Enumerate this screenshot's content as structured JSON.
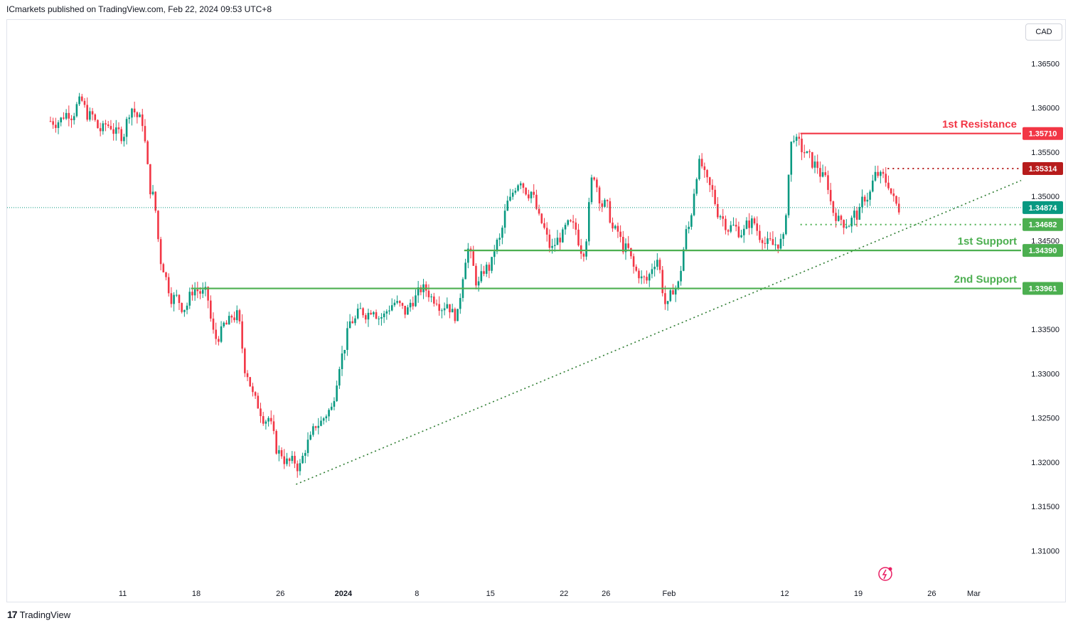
{
  "header": {
    "publisher_text": "ICmarkets published on TradingView.com, Feb 22, 2024 09:53 UTC+8"
  },
  "toolbar": {
    "currency": "CAD"
  },
  "footer": {
    "brand": "TradingView",
    "logo_icon": "tradingview-logo-icon"
  },
  "colors": {
    "up": "#089981",
    "down": "#f23645",
    "resistance": "#f23645",
    "support": "#4caf50",
    "pivot": "#b71c1c",
    "trend": "#2e7d32",
    "last": "#089981"
  },
  "chart_data": {
    "type": "candlestick",
    "symbol": "USDCAD",
    "title": "",
    "ylim": [
      1.3065,
      1.37
    ],
    "y_ticks": [
      {
        "value": 1.365,
        "label": "1.36500"
      },
      {
        "value": 1.36,
        "label": "1.36000"
      },
      {
        "value": 1.355,
        "label": "1.35500"
      },
      {
        "value": 1.35,
        "label": "1.35000"
      },
      {
        "value": 1.345,
        "label": "1.34500"
      },
      {
        "value": 1.335,
        "label": "1.33500"
      },
      {
        "value": 1.33,
        "label": "1.33000"
      },
      {
        "value": 1.325,
        "label": "1.32500"
      },
      {
        "value": 1.32,
        "label": "1.32000"
      },
      {
        "value": 1.315,
        "label": "1.31500"
      },
      {
        "value": 1.31,
        "label": "1.31000"
      }
    ],
    "x_ticks": [
      {
        "day": 11,
        "label": "11",
        "bold": false
      },
      {
        "day": 18,
        "label": "18",
        "bold": false
      },
      {
        "day": 26,
        "label": "26",
        "bold": false
      },
      {
        "day": 32,
        "label": "2024",
        "bold": true
      },
      {
        "day": 39,
        "label": "8",
        "bold": false
      },
      {
        "day": 46,
        "label": "15",
        "bold": false
      },
      {
        "day": 53,
        "label": "22",
        "bold": false
      },
      {
        "day": 57,
        "label": "26",
        "bold": false
      },
      {
        "day": 63,
        "label": "Feb",
        "bold": false
      },
      {
        "day": 74,
        "label": "12",
        "bold": false
      },
      {
        "day": 81,
        "label": "19",
        "bold": false
      },
      {
        "day": 88,
        "label": "26",
        "bold": false
      },
      {
        "day": 92,
        "label": "Mar",
        "bold": false
      }
    ],
    "candles_daily_close": [
      {
        "day": 5,
        "close": 1.3585
      },
      {
        "day": 6,
        "close": 1.3595
      },
      {
        "day": 7,
        "close": 1.3605
      },
      {
        "day": 8,
        "close": 1.359
      },
      {
        "day": 9,
        "close": 1.3575
      },
      {
        "day": 10,
        "close": 1.358
      },
      {
        "day": 11,
        "close": 1.357
      },
      {
        "day": 12,
        "close": 1.36
      },
      {
        "day": 13,
        "close": 1.3585
      },
      {
        "day": 14,
        "close": 1.35
      },
      {
        "day": 15,
        "close": 1.342
      },
      {
        "day": 16,
        "close": 1.3385
      },
      {
        "day": 17,
        "close": 1.3375
      },
      {
        "day": 18,
        "close": 1.3395
      },
      {
        "day": 19,
        "close": 1.339
      },
      {
        "day": 20,
        "close": 1.334
      },
      {
        "day": 21,
        "close": 1.3355
      },
      {
        "day": 22,
        "close": 1.3365
      },
      {
        "day": 23,
        "close": 1.33
      },
      {
        "day": 24,
        "close": 1.3265
      },
      {
        "day": 25,
        "close": 1.325
      },
      {
        "day": 26,
        "close": 1.321
      },
      {
        "day": 27,
        "close": 1.32
      },
      {
        "day": 28,
        "close": 1.3195
      },
      {
        "day": 29,
        "close": 1.3225
      },
      {
        "day": 30,
        "close": 1.3245
      },
      {
        "day": 31,
        "close": 1.326
      },
      {
        "day": 32,
        "close": 1.332
      },
      {
        "day": 33,
        "close": 1.336
      },
      {
        "day": 34,
        "close": 1.337
      },
      {
        "day": 35,
        "close": 1.3375
      },
      {
        "day": 36,
        "close": 1.3365
      },
      {
        "day": 37,
        "close": 1.338
      },
      {
        "day": 38,
        "close": 1.337
      },
      {
        "day": 39,
        "close": 1.3385
      },
      {
        "day": 40,
        "close": 1.3395
      },
      {
        "day": 41,
        "close": 1.3385
      },
      {
        "day": 42,
        "close": 1.338
      },
      {
        "day": 43,
        "close": 1.3365
      },
      {
        "day": 44,
        "close": 1.344
      },
      {
        "day": 45,
        "close": 1.34
      },
      {
        "day": 46,
        "close": 1.342
      },
      {
        "day": 47,
        "close": 1.345
      },
      {
        "day": 48,
        "close": 1.3495
      },
      {
        "day": 49,
        "close": 1.352
      },
      {
        "day": 50,
        "close": 1.3505
      },
      {
        "day": 51,
        "close": 1.347
      },
      {
        "day": 52,
        "close": 1.344
      },
      {
        "day": 53,
        "close": 1.3455
      },
      {
        "day": 54,
        "close": 1.3465
      },
      {
        "day": 55,
        "close": 1.344
      },
      {
        "day": 56,
        "close": 1.3525
      },
      {
        "day": 57,
        "close": 1.349
      },
      {
        "day": 58,
        "close": 1.346
      },
      {
        "day": 59,
        "close": 1.344
      },
      {
        "day": 60,
        "close": 1.3415
      },
      {
        "day": 61,
        "close": 1.3405
      },
      {
        "day": 62,
        "close": 1.343
      },
      {
        "day": 63,
        "close": 1.3375
      },
      {
        "day": 64,
        "close": 1.34
      },
      {
        "day": 65,
        "close": 1.3465
      },
      {
        "day": 66,
        "close": 1.3535
      },
      {
        "day": 67,
        "close": 1.351
      },
      {
        "day": 68,
        "close": 1.348
      },
      {
        "day": 69,
        "close": 1.3465
      },
      {
        "day": 70,
        "close": 1.346
      },
      {
        "day": 71,
        "close": 1.347
      },
      {
        "day": 72,
        "close": 1.3455
      },
      {
        "day": 73,
        "close": 1.3445
      },
      {
        "day": 74,
        "close": 1.345
      },
      {
        "day": 75,
        "close": 1.357
      },
      {
        "day": 76,
        "close": 1.355
      },
      {
        "day": 77,
        "close": 1.3535
      },
      {
        "day": 78,
        "close": 1.352
      },
      {
        "day": 79,
        "close": 1.348
      },
      {
        "day": 80,
        "close": 1.347
      },
      {
        "day": 81,
        "close": 1.348
      },
      {
        "day": 82,
        "close": 1.35
      },
      {
        "day": 83,
        "close": 1.3525
      },
      {
        "day": 84,
        "close": 1.3515
      },
      {
        "day": 85,
        "close": 1.3487
      }
    ],
    "levels": [
      {
        "name": "1st Resistance",
        "label": "1st Resistance",
        "price": 1.3571,
        "price_label": "1.35710",
        "style": "solid",
        "color_key": "resistance",
        "x_start_day": 75.5
      },
      {
        "name": "pivot",
        "label": "",
        "price": 1.35314,
        "price_label": "1.35314",
        "style": "dotted",
        "color_key": "pivot",
        "x_start_day": 83.8
      },
      {
        "name": "1st Support",
        "label": "1st Support",
        "price": 1.3439,
        "price_label": "1.34390",
        "style": "solid",
        "color_key": "support",
        "x_start_day": 43.5
      },
      {
        "name": "2nd Support",
        "label": "2nd Support",
        "price": 1.33961,
        "price_label": "1.33961",
        "style": "solid",
        "color_key": "support",
        "x_start_day": 17.5
      },
      {
        "name": "intermediate support",
        "label": "",
        "price": 1.34682,
        "price_label": "1.34682",
        "style": "dotted",
        "color_key": "support",
        "x_start_day": 75.5
      }
    ],
    "last_price": {
      "price": 1.34874,
      "label": "1.34874"
    },
    "trendline": {
      "from": {
        "day": 27.5,
        "price": 1.3175
      },
      "to": {
        "day": 96.5,
        "price": 1.3518
      }
    }
  }
}
